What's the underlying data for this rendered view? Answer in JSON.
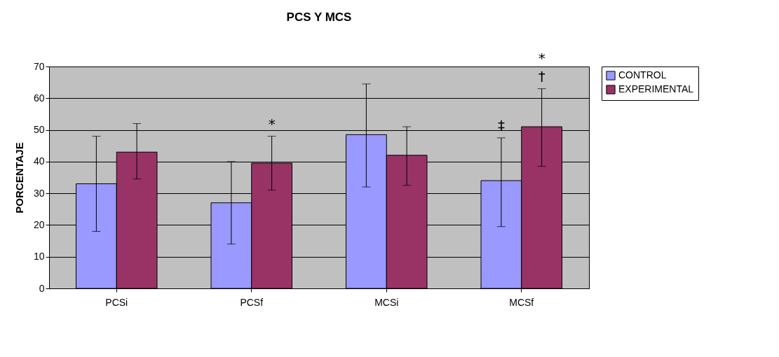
{
  "chart_data": {
    "type": "bar",
    "title": "PCS Y MCS",
    "ylabel": "PORCENTAJE",
    "categories": [
      "PCSi",
      "PCSf",
      "MCSi",
      "MCSf"
    ],
    "series": [
      {
        "name": "CONTROL",
        "color": "#9999ff",
        "values": [
          33,
          27,
          48.5,
          34
        ],
        "errors": [
          [
            18,
            48
          ],
          [
            14,
            40
          ],
          [
            32,
            64.5
          ],
          [
            19.5,
            47.5
          ]
        ]
      },
      {
        "name": "EXPERIMENTAL",
        "color": "#993366",
        "values": [
          43,
          39.5,
          42,
          51
        ],
        "errors": [
          [
            34.5,
            52
          ],
          [
            31,
            48
          ],
          [
            32.5,
            51
          ],
          [
            38.5,
            63
          ]
        ]
      }
    ],
    "ylim": [
      0,
      70
    ],
    "yticks": [
      0,
      10,
      20,
      30,
      40,
      50,
      60,
      70
    ],
    "grid": "y",
    "legend": "right",
    "annotations": [
      "*",
      "‡",
      "†",
      "*"
    ]
  }
}
